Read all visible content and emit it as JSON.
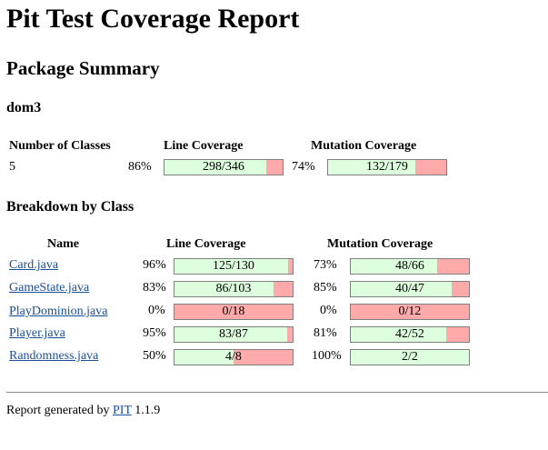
{
  "title": "Pit Test Coverage Report",
  "package_summary": {
    "heading": "Package Summary",
    "package_name": "dom3",
    "headers": {
      "classes": "Number of Classes",
      "line": "Line Coverage",
      "mutation": "Mutation Coverage"
    },
    "num_classes": "5",
    "line": {
      "percent": "86%",
      "ratio": "298/346",
      "fraction": 0.861
    },
    "mutation": {
      "percent": "74%",
      "ratio": "132/179",
      "fraction": 0.737
    }
  },
  "breakdown": {
    "heading": "Breakdown by Class",
    "headers": {
      "name": "Name",
      "line": "Line Coverage",
      "mutation": "Mutation Coverage"
    },
    "rows": [
      {
        "name": "Card.java",
        "line_percent": "96%",
        "line_ratio": "125/130",
        "line_fraction": 0.962,
        "mut_percent": "73%",
        "mut_ratio": "48/66",
        "mut_fraction": 0.727
      },
      {
        "name": "GameState.java",
        "line_percent": "83%",
        "line_ratio": "86/103",
        "line_fraction": 0.835,
        "mut_percent": "85%",
        "mut_ratio": "40/47",
        "mut_fraction": 0.851
      },
      {
        "name": "PlayDominion.java",
        "line_percent": "0%",
        "line_ratio": "0/18",
        "line_fraction": 0.0,
        "mut_percent": "0%",
        "mut_ratio": "0/12",
        "mut_fraction": 0.0
      },
      {
        "name": "Player.java",
        "line_percent": "95%",
        "line_ratio": "83/87",
        "line_fraction": 0.954,
        "mut_percent": "81%",
        "mut_ratio": "42/52",
        "mut_fraction": 0.808
      },
      {
        "name": "Randomness.java",
        "line_percent": "50%",
        "line_ratio": "4/8",
        "line_fraction": 0.5,
        "mut_percent": "100%",
        "mut_ratio": "2/2",
        "mut_fraction": 1.0
      }
    ]
  },
  "footer": {
    "prefix": "Report generated by",
    "link": "PIT",
    "version": "1.1.9"
  },
  "colors": {
    "covered": "#ddffdd",
    "uncovered": "#ffaaaa",
    "link": "#1a4e99"
  }
}
